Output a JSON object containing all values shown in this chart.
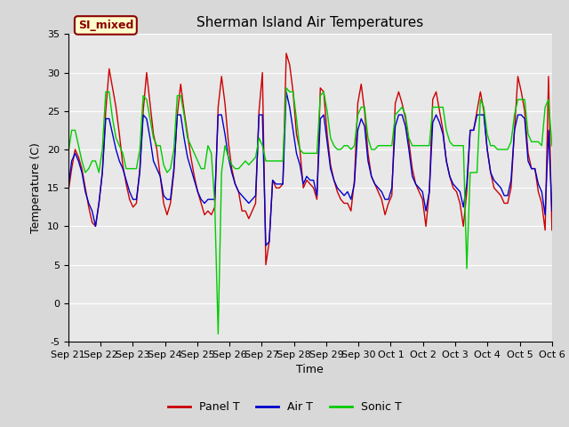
{
  "title": "Sherman Island Air Temperatures",
  "xlabel": "Time",
  "ylabel": "Temperature (C)",
  "ylim": [
    -5,
    35
  ],
  "yticks": [
    -5,
    0,
    5,
    10,
    15,
    20,
    25,
    30,
    35
  ],
  "xtick_labels": [
    "Sep 21",
    "Sep 22",
    "Sep 23",
    "Sep 24",
    "Sep 25",
    "Sep 26",
    "Sep 27",
    "Sep 28",
    "Sep 29",
    "Sep 30",
    "Oct 1",
    "Oct 2",
    "Oct 3",
    "Oct 4",
    "Oct 5",
    "Oct 6"
  ],
  "legend_title": "SI_mixed",
  "legend_entries": [
    "Panel T",
    "Air T",
    "Sonic T"
  ],
  "line_colors": [
    "#cc0000",
    "#0000cc",
    "#00cc00"
  ],
  "plot_bg": "#e8e8e8",
  "figure_bg": "#d8d8d8",
  "title_fontsize": 11,
  "axis_label_fontsize": 9,
  "tick_fontsize": 8,
  "panel_base": [
    14.5,
    17.5,
    20.0,
    19.0,
    17.5,
    15.0,
    12.5,
    10.5,
    10.0,
    13.0,
    17.0,
    25.0,
    30.5,
    28.0,
    25.5,
    22.0,
    18.0,
    15.5,
    13.5,
    12.5,
    13.0,
    17.5,
    25.0,
    30.0,
    26.0,
    22.0,
    20.0,
    16.5,
    13.0,
    11.5,
    13.0,
    17.0,
    24.5,
    28.5,
    25.0,
    22.0,
    19.0,
    16.5,
    14.5,
    13.0,
    11.5,
    12.0,
    11.5,
    12.5,
    25.5,
    29.5,
    26.0,
    21.0,
    17.5,
    15.5,
    14.5,
    12.0,
    12.0,
    11.0,
    12.0,
    13.0,
    25.0,
    30.0,
    5.0,
    8.0,
    16.0,
    15.0,
    15.0,
    15.5,
    32.5,
    31.0,
    27.5,
    22.0,
    20.0,
    15.0,
    16.0,
    15.5,
    15.0,
    13.5,
    28.0,
    27.5,
    22.0,
    18.0,
    16.0,
    14.5,
    13.5,
    13.0,
    13.0,
    12.0,
    16.0,
    26.0,
    28.5,
    25.0,
    19.5,
    16.5,
    15.5,
    14.5,
    13.5,
    11.5,
    13.0,
    14.0,
    26.0,
    27.5,
    26.0,
    24.0,
    21.0,
    17.5,
    15.5,
    14.5,
    13.5,
    10.0,
    14.5,
    26.5,
    27.5,
    25.0,
    22.5,
    18.5,
    16.5,
    15.0,
    14.5,
    13.0,
    10.0,
    14.5,
    22.5,
    22.5,
    25.0,
    27.5,
    25.0,
    20.0,
    17.0,
    15.0,
    14.5,
    14.0,
    13.0,
    13.0,
    15.0,
    22.5,
    29.5,
    27.5,
    25.0,
    19.5,
    17.5,
    17.5,
    14.5,
    13.0,
    9.5,
    29.5,
    9.5
  ],
  "air_base": [
    15.0,
    18.5,
    19.5,
    18.5,
    17.0,
    14.5,
    13.0,
    12.0,
    10.0,
    13.0,
    17.0,
    24.0,
    24.0,
    22.0,
    20.0,
    18.5,
    17.5,
    16.0,
    14.5,
    13.5,
    13.5,
    17.0,
    24.5,
    24.0,
    21.5,
    18.5,
    17.5,
    16.5,
    14.0,
    13.5,
    13.5,
    17.5,
    24.5,
    24.5,
    21.5,
    19.0,
    17.5,
    16.0,
    14.5,
    13.5,
    13.0,
    13.5,
    13.5,
    13.5,
    24.5,
    24.5,
    22.0,
    19.0,
    17.0,
    15.5,
    14.5,
    14.0,
    13.5,
    13.0,
    13.5,
    14.0,
    24.5,
    24.5,
    7.5,
    8.0,
    16.0,
    15.5,
    15.5,
    15.5,
    27.5,
    25.5,
    22.5,
    19.5,
    18.0,
    15.5,
    16.5,
    16.0,
    16.0,
    14.0,
    24.0,
    24.5,
    21.0,
    17.5,
    16.0,
    15.0,
    14.5,
    14.0,
    14.5,
    13.5,
    15.5,
    22.5,
    24.0,
    23.0,
    18.5,
    16.5,
    15.5,
    15.0,
    14.5,
    13.5,
    13.5,
    15.0,
    23.0,
    24.5,
    24.5,
    23.0,
    20.0,
    16.5,
    15.5,
    15.0,
    14.5,
    12.0,
    14.5,
    23.5,
    24.5,
    23.5,
    22.0,
    18.5,
    16.5,
    15.5,
    15.0,
    14.5,
    12.5,
    15.5,
    22.5,
    22.5,
    24.5,
    24.5,
    24.5,
    20.0,
    17.0,
    16.0,
    15.5,
    15.0,
    14.0,
    14.0,
    16.0,
    22.5,
    24.5,
    24.5,
    24.0,
    18.5,
    17.5,
    17.5,
    15.5,
    14.5,
    11.5,
    22.5,
    12.0
  ],
  "sonic_base": [
    19.5,
    22.5,
    22.5,
    20.5,
    18.5,
    17.0,
    17.5,
    18.5,
    18.5,
    17.0,
    20.0,
    27.5,
    27.5,
    24.0,
    21.5,
    20.5,
    19.5,
    17.5,
    17.5,
    17.5,
    17.5,
    20.0,
    27.0,
    26.5,
    24.0,
    21.5,
    20.5,
    20.5,
    18.0,
    17.0,
    17.5,
    20.0,
    27.0,
    27.0,
    24.5,
    21.5,
    20.5,
    19.5,
    18.5,
    17.5,
    17.5,
    20.5,
    19.5,
    13.0,
    -4.0,
    17.0,
    20.5,
    19.0,
    18.0,
    17.5,
    17.5,
    18.0,
    18.5,
    18.0,
    18.5,
    19.0,
    21.5,
    20.5,
    18.5,
    18.5,
    18.5,
    18.5,
    18.5,
    18.5,
    28.0,
    27.5,
    27.5,
    24.0,
    20.0,
    19.5,
    19.5,
    19.5,
    19.5,
    19.5,
    27.0,
    27.5,
    25.0,
    21.5,
    20.5,
    20.0,
    20.0,
    20.5,
    20.5,
    20.0,
    20.5,
    24.5,
    25.5,
    25.5,
    21.5,
    20.0,
    20.0,
    20.5,
    20.5,
    20.5,
    20.5,
    20.5,
    24.5,
    25.0,
    25.5,
    24.5,
    21.5,
    20.5,
    20.5,
    20.5,
    20.5,
    20.5,
    20.5,
    25.5,
    25.5,
    25.5,
    25.5,
    22.5,
    21.0,
    20.5,
    20.5,
    20.5,
    20.5,
    4.5,
    17.0,
    17.0,
    17.0,
    26.5,
    25.5,
    22.0,
    20.5,
    20.5,
    20.0,
    20.0,
    20.0,
    20.0,
    21.0,
    24.5,
    26.5,
    26.5,
    26.5,
    22.0,
    21.0,
    21.0,
    21.0,
    20.5,
    25.5,
    26.5,
    20.5
  ]
}
